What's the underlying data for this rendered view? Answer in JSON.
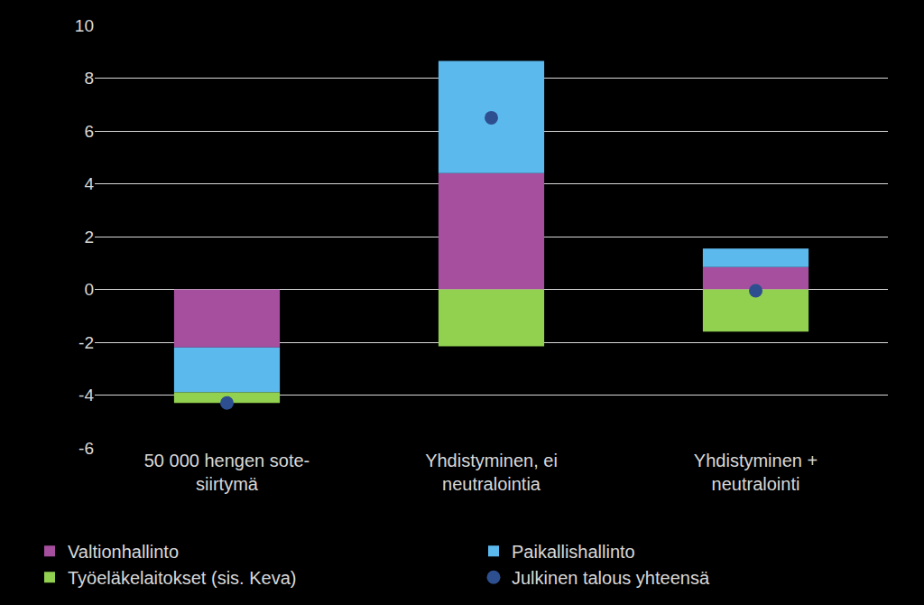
{
  "chart_data": {
    "type": "bar",
    "stacked": true,
    "categories": [
      "50 000 hengen sote-\nsiirtymä",
      "Yhdistyminen, ei\nneutralointia",
      "Yhdistyminen +\nneutralointi"
    ],
    "series": [
      {
        "name": "Valtionhallinto",
        "type": "bar",
        "color": "#a54f9e",
        "values": [
          -2.2,
          4.4,
          0.85
        ]
      },
      {
        "name": "Paikallishallinto",
        "type": "bar",
        "color": "#5cb9ee",
        "values": [
          -1.7,
          4.25,
          0.7
        ]
      },
      {
        "name": "Työeläkelaitokset (sis. Keva)",
        "type": "bar",
        "color": "#92d050",
        "values": [
          -0.4,
          -2.15,
          -1.6
        ]
      },
      {
        "name": "Julkinen talous yhteensä",
        "type": "scatter",
        "marker": "circle",
        "color": "#2e4f8f",
        "values": [
          -4.3,
          6.5,
          -0.05
        ]
      }
    ],
    "ylim": [
      -6,
      10
    ],
    "yticks": [
      -6,
      -4,
      -2,
      0,
      2,
      4,
      6,
      8,
      10
    ],
    "grid": true,
    "legend": "bottom"
  }
}
